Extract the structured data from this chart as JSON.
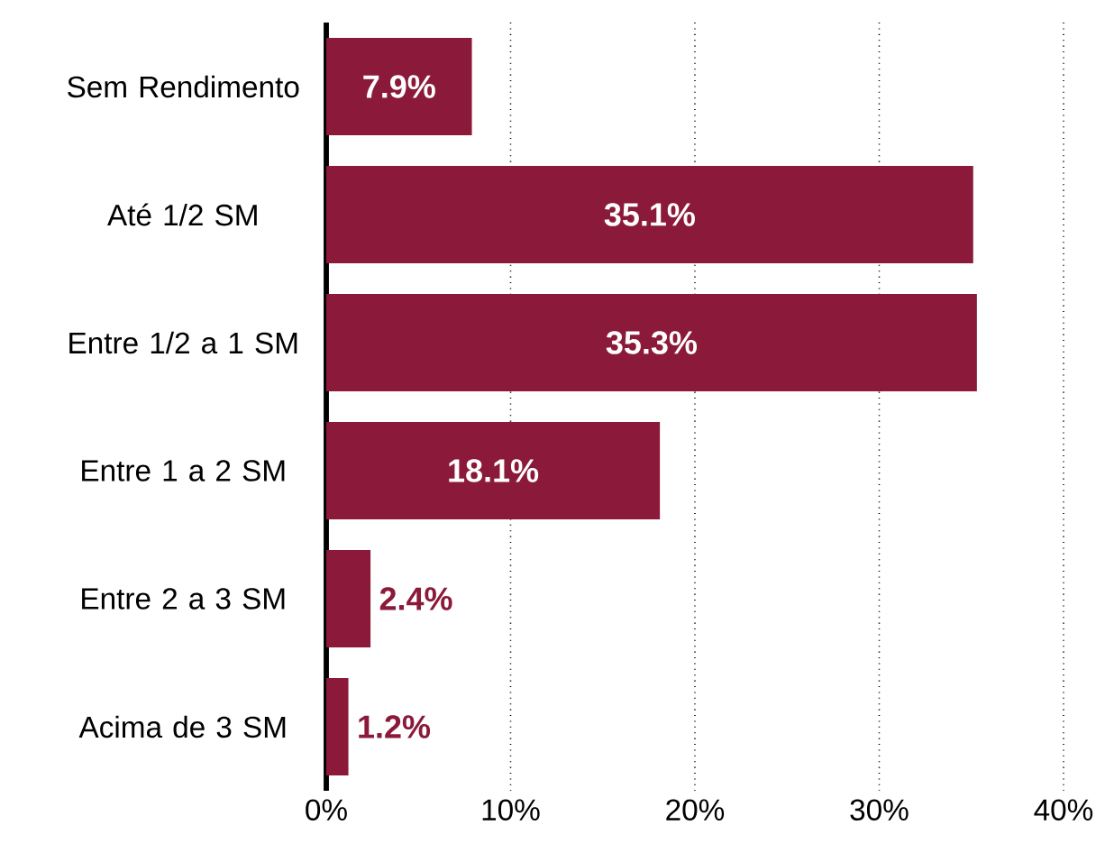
{
  "chart_data": {
    "type": "bar",
    "orientation": "horizontal",
    "categories": [
      "Sem Rendimento",
      "Até 1/2 SM",
      "Entre 1/2 a 1 SM",
      "Entre 1 a 2 SM",
      "Entre 2 a 3 SM",
      "Acima de 3 SM"
    ],
    "values": [
      7.9,
      35.1,
      35.3,
      18.1,
      2.4,
      1.2
    ],
    "value_labels": [
      "7.9%",
      "35.1%",
      "35.3%",
      "18.1%",
      "2.4%",
      "1.2%"
    ],
    "color": "#8b1a3a",
    "xlim": [
      0,
      40
    ],
    "xticks": [
      {
        "value": 0,
        "label": "0%"
      },
      {
        "value": 10,
        "label": "10%"
      },
      {
        "value": 20,
        "label": "20%"
      },
      {
        "value": 30,
        "label": "30%"
      },
      {
        "value": 40,
        "label": "40%"
      }
    ],
    "grid": "x"
  }
}
